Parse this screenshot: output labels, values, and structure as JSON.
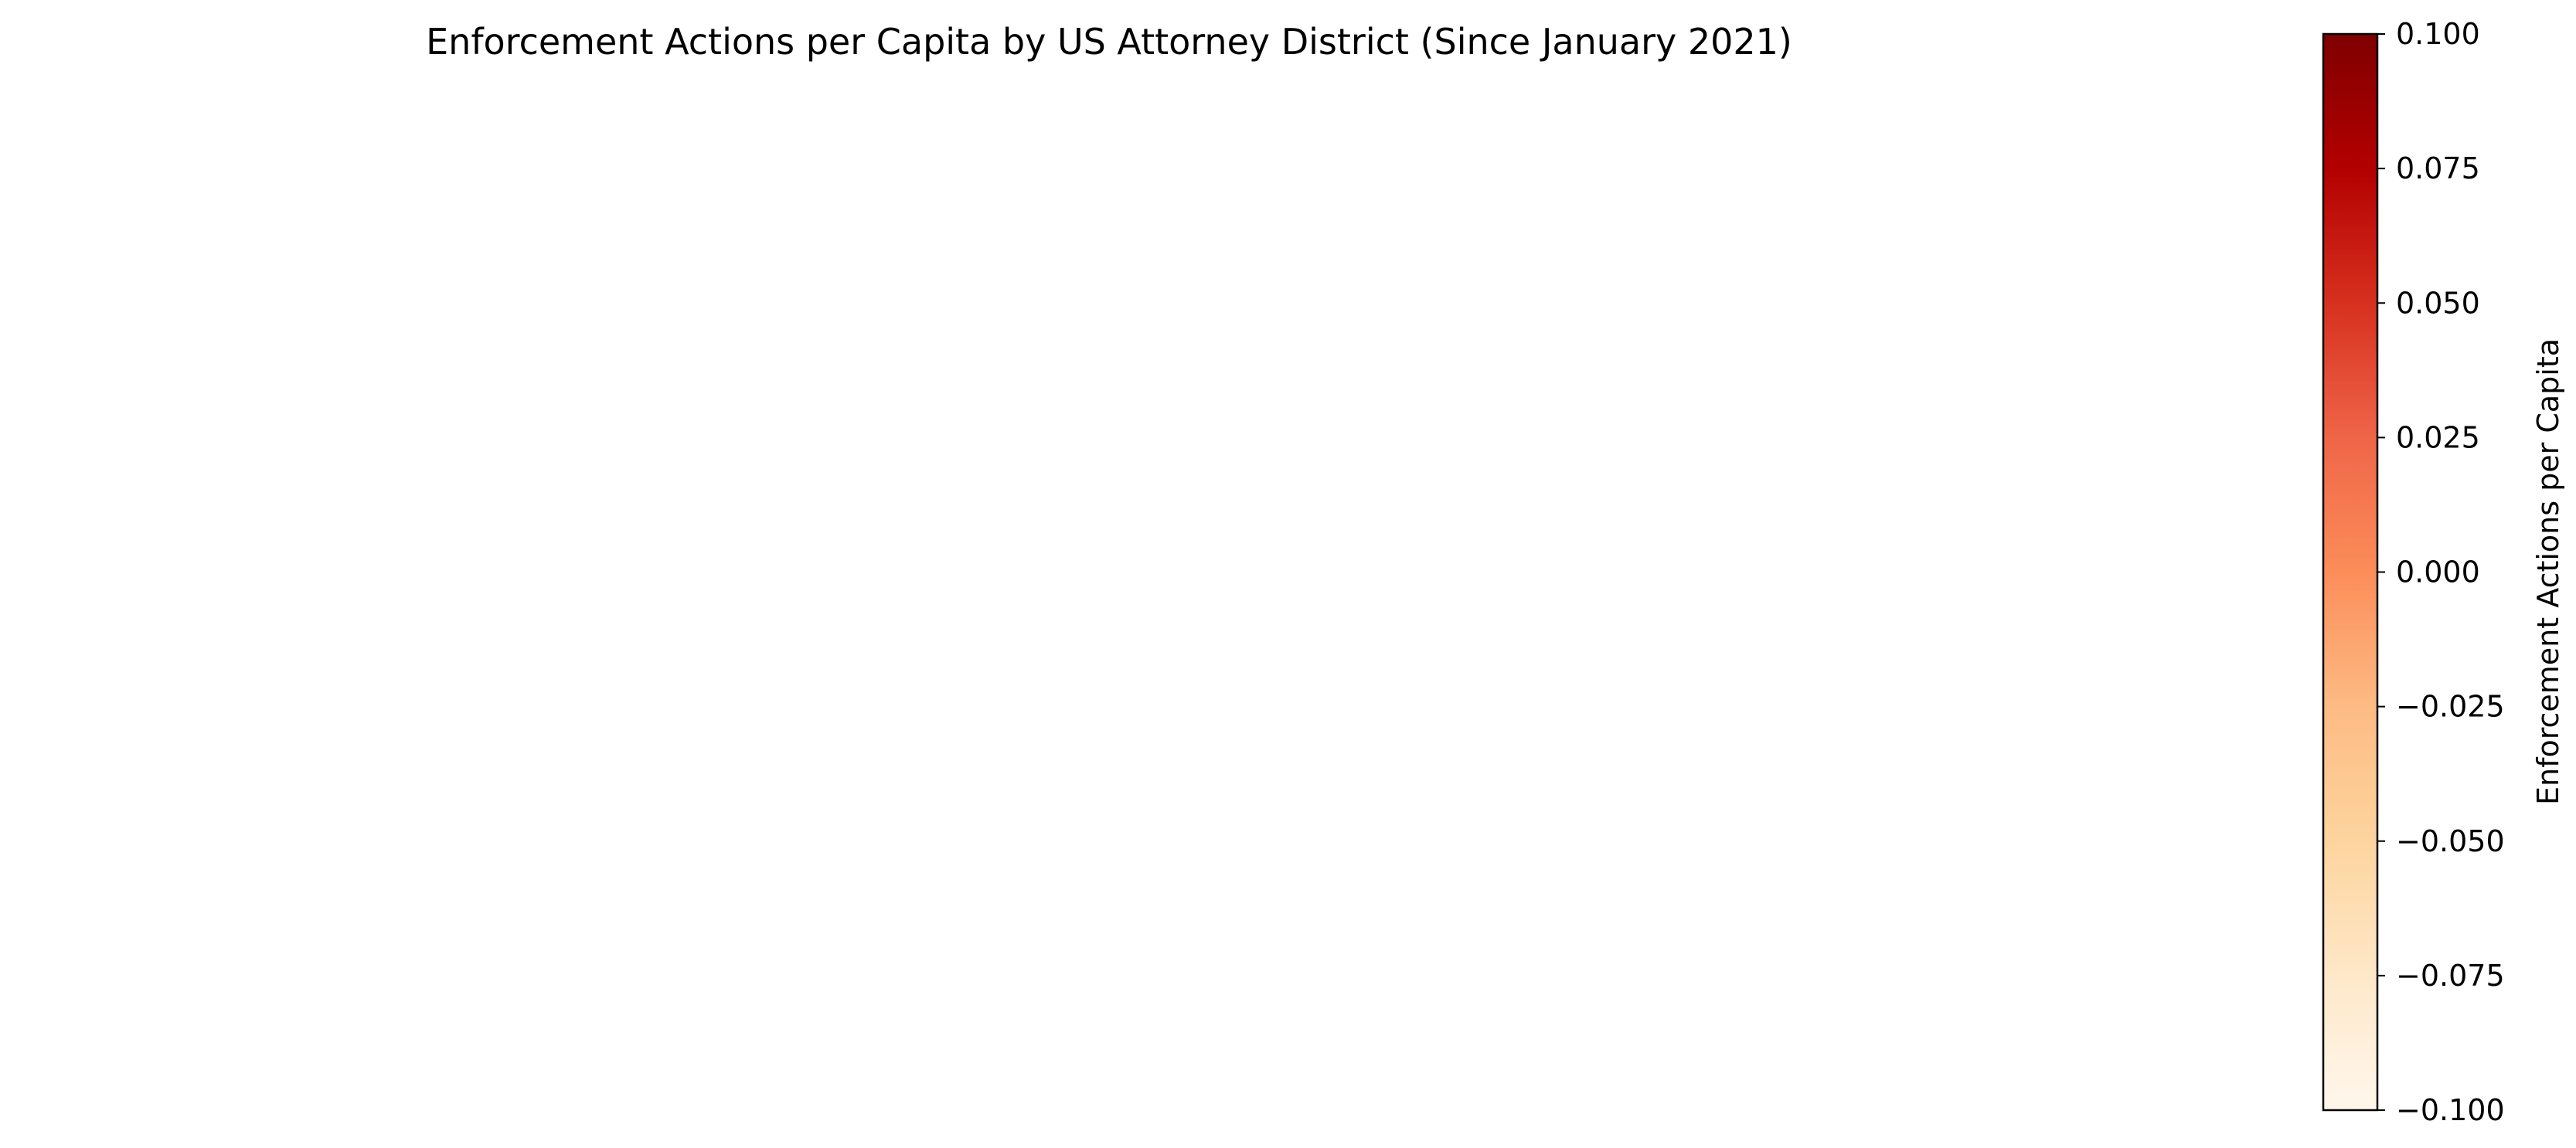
{
  "chart_data": {
    "type": "heatmap",
    "subtype": "choropleth",
    "title": "Enforcement Actions per Capita by US Attorney District (Since January 2021)",
    "regions": [],
    "colorbar": {
      "label": "Enforcement Actions per Capita",
      "range": [
        -0.1,
        0.1
      ],
      "colormap": "OrRd",
      "colors": [
        "#fff7ec",
        "#fee8c8",
        "#fdd49e",
        "#fdbb84",
        "#fc8d59",
        "#ef6548",
        "#d7301f",
        "#b30000",
        "#7f0000"
      ],
      "ticks": [
        {
          "value": 0.1,
          "label": "0.100"
        },
        {
          "value": 0.075,
          "label": "0.075"
        },
        {
          "value": 0.05,
          "label": "0.050"
        },
        {
          "value": 0.025,
          "label": "0.025"
        },
        {
          "value": 0.0,
          "label": "0.000"
        },
        {
          "value": -0.025,
          "label": "−0.025"
        },
        {
          "value": -0.05,
          "label": "−0.050"
        },
        {
          "value": -0.075,
          "label": "−0.075"
        },
        {
          "value": -0.1,
          "label": "−0.100"
        }
      ]
    }
  }
}
